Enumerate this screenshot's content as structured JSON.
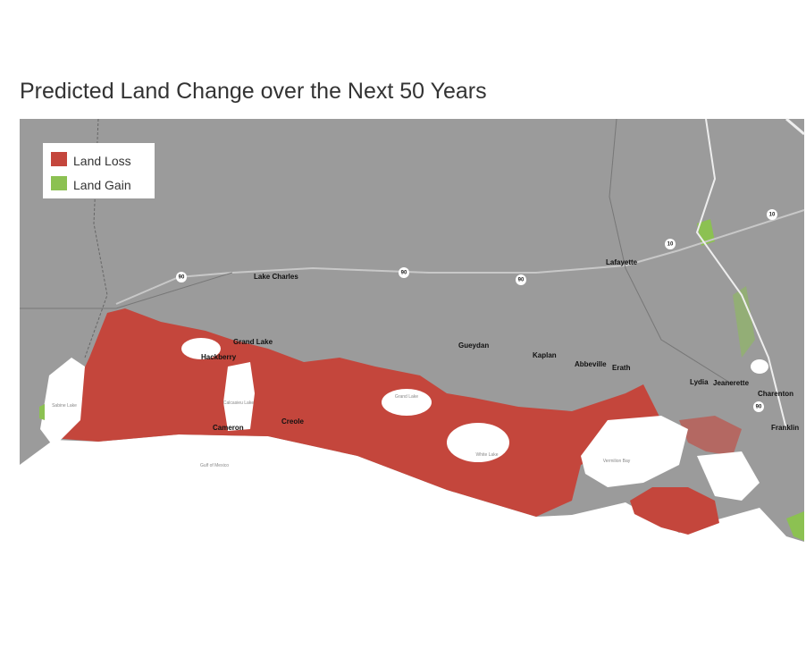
{
  "title": "Predicted Land Change over the Next 50 Years",
  "legend": [
    {
      "label": "Land Loss",
      "color": "#c4463c"
    },
    {
      "label": "Land Gain",
      "color": "#8cc152"
    }
  ],
  "places": [
    "Lake Charles",
    "Grand Lake",
    "Hackberry",
    "Cameron",
    "Creole",
    "Gueydan",
    "Kaplan",
    "Abbeville",
    "Erath",
    "Lydia",
    "Jeanerette",
    "Charenton",
    "Franklin",
    "Lafayette"
  ],
  "highways": [
    "90",
    "90",
    "90",
    "10",
    "10",
    "90"
  ],
  "water_labels": [
    "Sabine Lake",
    "Calcasieu Lake",
    "Grand Lake",
    "White Lake",
    "Gulf of Mexico",
    "Vermilion Bay"
  ]
}
